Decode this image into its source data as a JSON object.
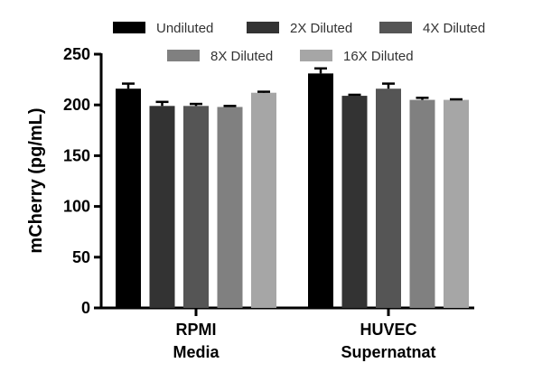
{
  "chart_data": {
    "type": "bar",
    "title": "",
    "xlabel": "",
    "ylabel": "mCherry (pg/mL)",
    "ylim": [
      0,
      250
    ],
    "yticks": [
      0,
      50,
      100,
      150,
      200,
      250
    ],
    "categories": [
      {
        "line1": "RPMI",
        "line2": "Media"
      },
      {
        "line1": "HUVEC",
        "line2": "Supernatnat"
      }
    ],
    "series": [
      {
        "name": "Undiluted",
        "color": "#000000",
        "values": [
          216,
          231
        ],
        "errors": [
          5,
          5
        ]
      },
      {
        "name": "2X Diluted",
        "color": "#333333",
        "values": [
          199,
          209
        ],
        "errors": [
          4,
          1
        ]
      },
      {
        "name": "4X Diluted",
        "color": "#555555",
        "values": [
          199,
          216
        ],
        "errors": [
          2,
          5
        ]
      },
      {
        "name": "8X Diluted",
        "color": "#808080",
        "values": [
          198,
          205
        ],
        "errors": [
          1,
          2
        ]
      },
      {
        "name": "16X Diluted",
        "color": "#a6a6a6",
        "values": [
          212,
          205
        ],
        "errors": [
          1,
          0.5
        ]
      }
    ],
    "legend_position": "top"
  }
}
